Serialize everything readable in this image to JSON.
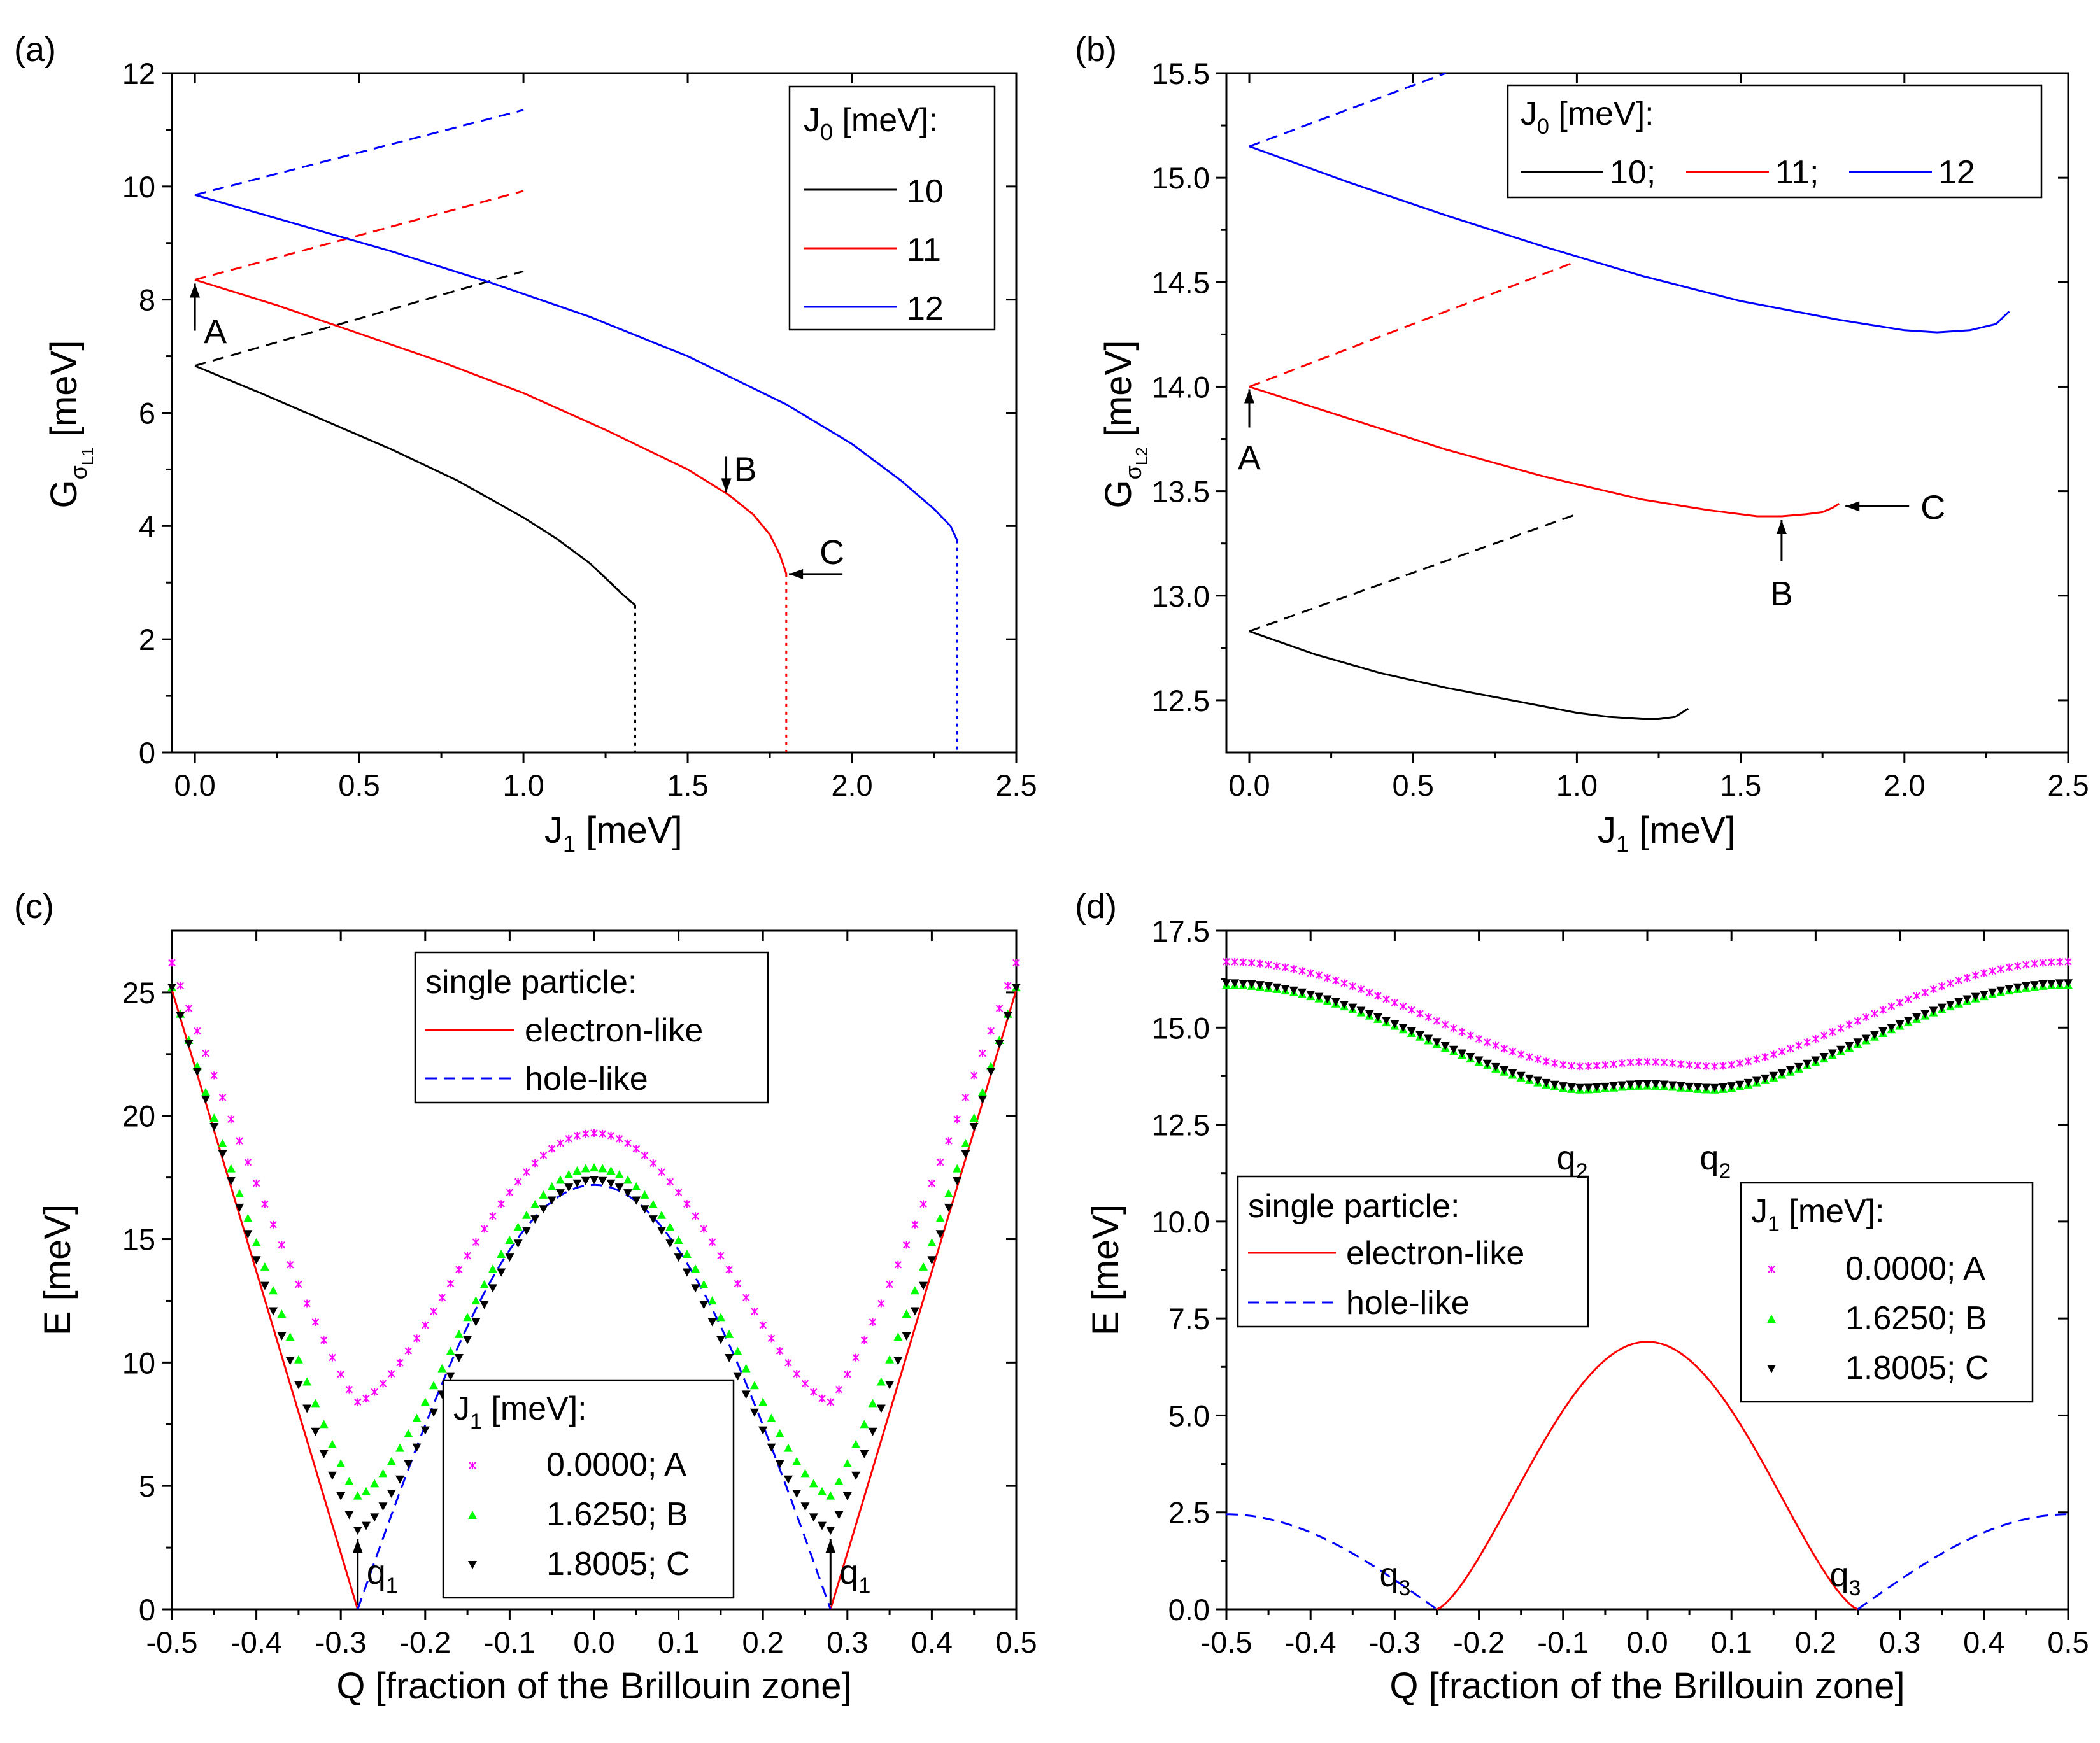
{
  "colors": {
    "black": "#000000",
    "red": "#ff0000",
    "blue": "#0000ff",
    "magenta": "#ff00ff",
    "green": "#00ff00"
  },
  "chart_data": [
    {
      "panel": "(a)",
      "type": "line",
      "xlabel_main": "J",
      "xlabel_sub": "1",
      "xlabel_rest": " [meV]",
      "ylabel_main": "G",
      "ylabel_sub": "σ",
      "ylabel_subsub": "L1",
      "ylabel_rest": " [meV]",
      "xlim": [
        -0.07,
        2.5
      ],
      "ylim": [
        0,
        12
      ],
      "xticks": [
        0.0,
        0.5,
        1.0,
        1.5,
        2.0,
        2.5
      ],
      "xtick_labels": [
        "0.0",
        "0.5",
        "1.0",
        "1.5",
        "2.0",
        "2.5"
      ],
      "yticks": [
        0,
        2,
        4,
        6,
        8,
        10,
        12
      ],
      "ytick_labels": [
        "0",
        "2",
        "4",
        "6",
        "8",
        "10",
        "12"
      ],
      "legend": {
        "title_main": "J",
        "title_sub": "0",
        "title_rest": " [meV]:",
        "entries": [
          "10",
          "11",
          "12"
        ]
      },
      "series": [
        {
          "name": "10",
          "color": "black",
          "style": "solid",
          "x": [
            0,
            0.2,
            0.4,
            0.6,
            0.8,
            1.0,
            1.1,
            1.2,
            1.25,
            1.3,
            1.34
          ],
          "y": [
            6.83,
            6.35,
            5.85,
            5.35,
            4.8,
            4.15,
            3.78,
            3.35,
            3.08,
            2.8,
            2.6
          ]
        },
        {
          "name": "10",
          "color": "black",
          "style": "dashed",
          "x": [
            0,
            1.0
          ],
          "y": [
            6.83,
            8.5
          ]
        },
        {
          "name": "10",
          "color": "black",
          "style": "dotted",
          "x": [
            1.34,
            1.34
          ],
          "y": [
            2.6,
            0
          ]
        },
        {
          "name": "11",
          "color": "red",
          "style": "solid",
          "x": [
            0,
            0.25,
            0.5,
            0.75,
            1.0,
            1.25,
            1.5,
            1.625,
            1.7,
            1.75,
            1.78,
            1.8005
          ],
          "y": [
            8.35,
            7.9,
            7.4,
            6.9,
            6.35,
            5.7,
            5.0,
            4.55,
            4.2,
            3.85,
            3.5,
            3.15
          ]
        },
        {
          "name": "11",
          "color": "red",
          "style": "dashed",
          "x": [
            0,
            1.0
          ],
          "y": [
            8.35,
            9.92
          ]
        },
        {
          "name": "11",
          "color": "red",
          "style": "dotted",
          "x": [
            1.8,
            1.8
          ],
          "y": [
            3.15,
            0
          ]
        },
        {
          "name": "12",
          "color": "blue",
          "style": "solid",
          "x": [
            0,
            0.3,
            0.6,
            0.9,
            1.2,
            1.5,
            1.8,
            2.0,
            2.15,
            2.25,
            2.3,
            2.32
          ],
          "y": [
            9.85,
            9.35,
            8.85,
            8.3,
            7.7,
            7.0,
            6.15,
            5.45,
            4.8,
            4.3,
            4.0,
            3.75
          ]
        },
        {
          "name": "12",
          "color": "blue",
          "style": "dashed",
          "x": [
            0,
            1.0
          ],
          "y": [
            9.85,
            11.35
          ]
        },
        {
          "name": "12",
          "color": "blue",
          "style": "dotted",
          "x": [
            2.32,
            2.32
          ],
          "y": [
            3.75,
            0
          ]
        }
      ],
      "annotations": [
        {
          "label": "A",
          "x": 0.0,
          "y": 8.35
        },
        {
          "label": "B",
          "x": 1.625,
          "y": 4.55
        },
        {
          "label": "C",
          "x": 1.8005,
          "y": 3.15
        }
      ]
    },
    {
      "panel": "(b)",
      "type": "line",
      "xlabel_main": "J",
      "xlabel_sub": "1",
      "xlabel_rest": " [meV]",
      "ylabel_main": "G",
      "ylabel_sub": "σ",
      "ylabel_subsub": "L2",
      "ylabel_rest": " [meV]",
      "xlim": [
        -0.07,
        2.5
      ],
      "ylim": [
        12.25,
        15.5
      ],
      "xticks": [
        0.0,
        0.5,
        1.0,
        1.5,
        2.0,
        2.5
      ],
      "xtick_labels": [
        "0.0",
        "0.5",
        "1.0",
        "1.5",
        "2.0",
        "2.5"
      ],
      "yticks": [
        12.5,
        13.0,
        13.5,
        14.0,
        14.5,
        15.0,
        15.5
      ],
      "ytick_labels": [
        "12.5",
        "13.0",
        "13.5",
        "14.0",
        "14.5",
        "15.0",
        "15.5"
      ],
      "legend": {
        "title_main": "J",
        "title_sub": "0",
        "title_rest": " [meV]:",
        "entries": [
          "10;",
          "11;",
          "12"
        ]
      },
      "series": [
        {
          "name": "10",
          "color": "black",
          "style": "solid",
          "x": [
            0,
            0.2,
            0.4,
            0.6,
            0.8,
            1.0,
            1.1,
            1.2,
            1.25,
            1.3,
            1.34
          ],
          "y": [
            12.83,
            12.72,
            12.63,
            12.56,
            12.5,
            12.44,
            12.42,
            12.41,
            12.41,
            12.42,
            12.46
          ]
        },
        {
          "name": "10",
          "color": "black",
          "style": "dashed",
          "x": [
            0,
            1.0
          ],
          "y": [
            12.83,
            13.39
          ]
        },
        {
          "name": "11",
          "color": "red",
          "style": "solid",
          "x": [
            0,
            0.3,
            0.6,
            0.9,
            1.2,
            1.4,
            1.55,
            1.625,
            1.7,
            1.75,
            1.78,
            1.8005
          ],
          "y": [
            14.0,
            13.85,
            13.7,
            13.57,
            13.46,
            13.41,
            13.38,
            13.38,
            13.39,
            13.4,
            13.42,
            13.44
          ]
        },
        {
          "name": "11",
          "color": "red",
          "style": "dashed",
          "x": [
            0,
            1.0
          ],
          "y": [
            14.0,
            14.6
          ]
        },
        {
          "name": "12",
          "color": "blue",
          "style": "solid",
          "x": [
            0,
            0.3,
            0.6,
            0.9,
            1.2,
            1.5,
            1.8,
            2.0,
            2.1,
            2.2,
            2.28,
            2.32
          ],
          "y": [
            15.15,
            14.98,
            14.82,
            14.67,
            14.53,
            14.41,
            14.32,
            14.27,
            14.26,
            14.27,
            14.3,
            14.36
          ]
        },
        {
          "name": "12",
          "color": "blue",
          "style": "dashed",
          "x": [
            0,
            0.6
          ],
          "y": [
            15.15,
            15.5
          ]
        }
      ],
      "annotations": [
        {
          "label": "A",
          "x": 0.0,
          "y": 14.0
        },
        {
          "label": "B",
          "x": 1.625,
          "y": 13.38
        },
        {
          "label": "C",
          "x": 1.8005,
          "y": 13.44
        }
      ]
    },
    {
      "panel": "(c)",
      "type": "line+scatter",
      "xlabel": "Q [fraction of the Brillouin zone]",
      "ylabel": "E [meV]",
      "xlim": [
        -0.5,
        0.5
      ],
      "ylim": [
        0,
        27.5
      ],
      "xticks": [
        -0.5,
        -0.4,
        -0.3,
        -0.2,
        -0.1,
        0.0,
        0.1,
        0.2,
        0.3,
        0.4,
        0.5
      ],
      "xtick_labels": [
        "-0.5",
        "-0.4",
        "-0.3",
        "-0.2",
        "-0.1",
        "0.0",
        "0.1",
        "0.2",
        "0.3",
        "0.4",
        "0.5"
      ],
      "yticks": [
        0,
        5,
        10,
        15,
        20,
        25
      ],
      "ytick_labels": [
        "0",
        "5",
        "10",
        "15",
        "20",
        "25"
      ],
      "legend_lines": {
        "title": "single particle:",
        "entries": [
          "electron-like",
          "hole-like"
        ]
      },
      "legend_points": {
        "title_main": "J",
        "title_sub": "1",
        "title_rest": " [meV]:",
        "entries": [
          "0.0000; A",
          "1.6250; B",
          "1.8005; C"
        ]
      },
      "lines": {
        "electron_slope_per_fraction": 113.6,
        "hole_peak": 17.2,
        "crossing_q": 0.28
      },
      "point_series": [
        {
          "name": "0.0000; A",
          "color": "magenta",
          "marker": "x",
          "peak": 19.3,
          "min": 8.4
        },
        {
          "name": "1.6250; B",
          "color": "green",
          "marker": "triangle-up",
          "peak": 17.9,
          "min": 4.6
        },
        {
          "name": "1.8005; C",
          "color": "black",
          "marker": "triangle-down",
          "peak": 17.4,
          "min": 3.2
        }
      ],
      "annotations": [
        {
          "label": "q",
          "sub": "1",
          "x": -0.28
        },
        {
          "label": "q",
          "sub": "1",
          "x": 0.28
        }
      ]
    },
    {
      "panel": "(d)",
      "type": "line+scatter",
      "xlabel": "Q [fraction of the Brillouin zone]",
      "ylabel": "E [meV]",
      "xlim": [
        -0.5,
        0.5
      ],
      "ylim": [
        0,
        17.5
      ],
      "xticks": [
        -0.5,
        -0.4,
        -0.3,
        -0.2,
        -0.1,
        0.0,
        0.1,
        0.2,
        0.3,
        0.4,
        0.5
      ],
      "xtick_labels": [
        "-0.5",
        "-0.4",
        "-0.3",
        "-0.2",
        "-0.1",
        "0.0",
        "0.1",
        "0.2",
        "0.3",
        "0.4",
        "0.5"
      ],
      "yticks": [
        0,
        2.5,
        5,
        7.5,
        10,
        12.5,
        15,
        17.5
      ],
      "ytick_labels": [
        "0.0",
        "2.5",
        "5.0",
        "7.5",
        "10.0",
        "12.5",
        "15.0",
        "17.5"
      ],
      "legend_lines": {
        "title": "single particle:",
        "entries": [
          "electron-like",
          "hole-like"
        ]
      },
      "legend_points": {
        "title_main": "J",
        "title_sub": "1",
        "title_rest": " [meV]:",
        "entries": [
          "0.0000; A",
          "1.6250; B",
          "1.8005; C"
        ]
      },
      "lines": {
        "electron_peak": 6.9,
        "hole_max": 2.45,
        "crossing_q": 0.25
      },
      "point_series": [
        {
          "name": "0.0000; A",
          "color": "magenta",
          "marker": "x",
          "edge": 16.7,
          "min": 14.0,
          "center": 14.12
        },
        {
          "name": "1.6250; B",
          "color": "green",
          "marker": "triangle-up",
          "edge": 16.1,
          "min": 13.4,
          "center": 13.5
        },
        {
          "name": "1.8005; C",
          "color": "black",
          "marker": "triangle-down",
          "edge": 16.15,
          "min": 13.45,
          "center": 13.55
        }
      ],
      "annotations": [
        {
          "label": "q",
          "sub": "2",
          "x": -0.08
        },
        {
          "label": "q",
          "sub": "2",
          "x": 0.08
        },
        {
          "label": "q",
          "sub": "3",
          "x": -0.25
        },
        {
          "label": "q",
          "sub": "3",
          "x": 0.25
        }
      ]
    }
  ]
}
